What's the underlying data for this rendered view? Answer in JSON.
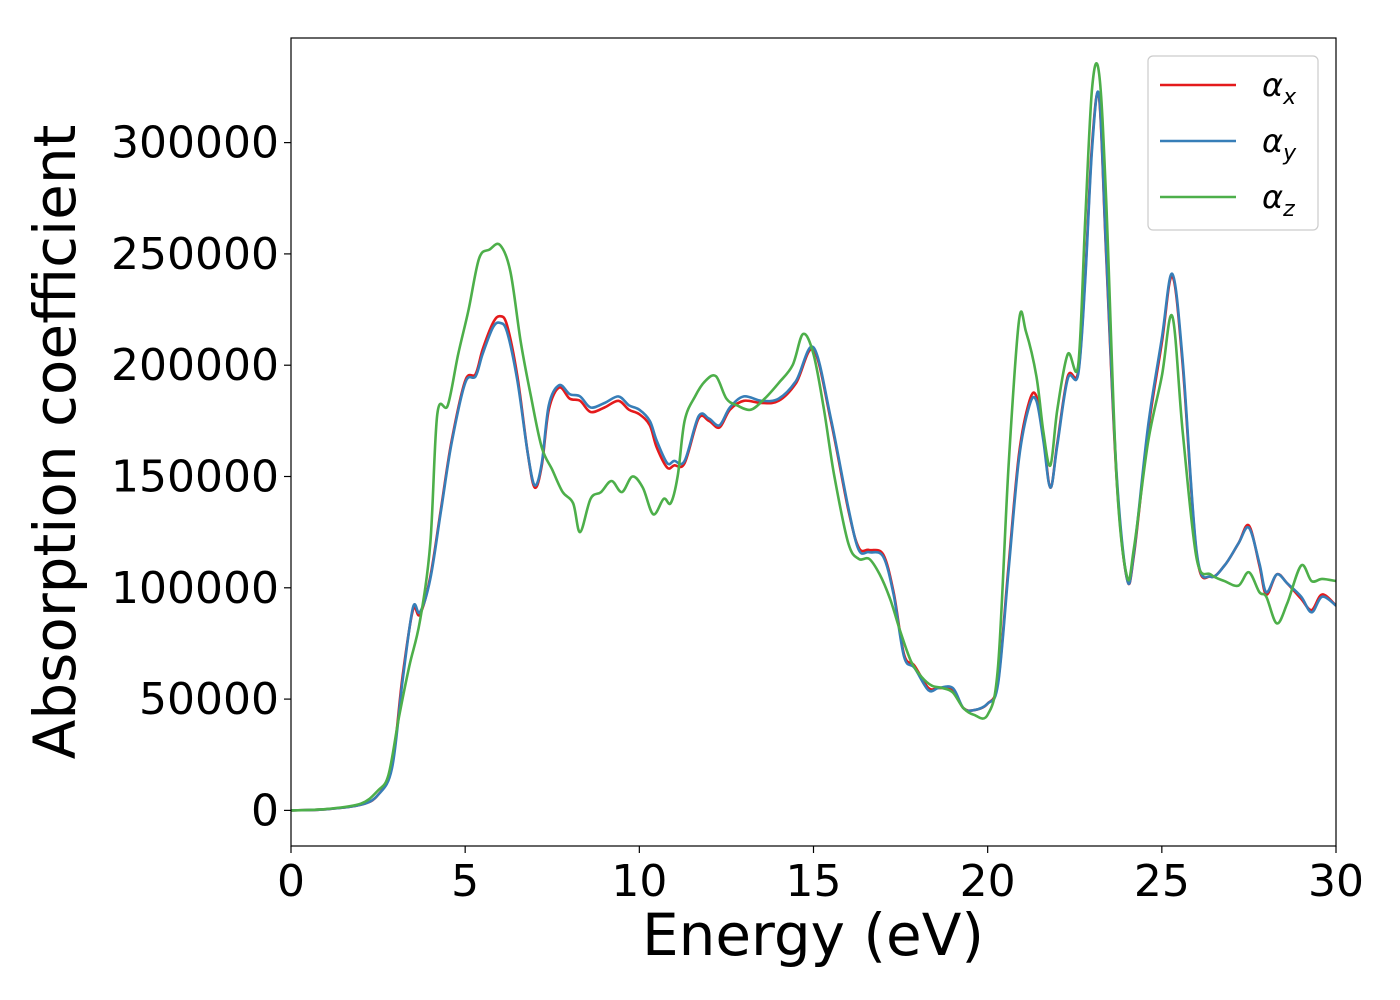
{
  "chart_data": {
    "type": "line",
    "xlabel": "Energy (eV)",
    "ylabel": "Absorption coefficient",
    "xlim": [
      0,
      30
    ],
    "ylim": [
      -16000,
      347000
    ],
    "xticks": [
      0,
      5,
      10,
      15,
      20,
      25,
      30
    ],
    "yticks": [
      0,
      50000,
      100000,
      150000,
      200000,
      250000,
      300000
    ],
    "grid": false,
    "legend_position": "top-right",
    "series": [
      {
        "name": "α_x",
        "symbol": "α",
        "subscript": "x",
        "color": "#e41a1c",
        "x": [
          0,
          1,
          2,
          2.5,
          2.9,
          3.2,
          3.5,
          3.7,
          4.0,
          4.3,
          4.6,
          5.0,
          5.3,
          5.5,
          5.8,
          6.0,
          6.2,
          6.5,
          6.8,
          7.0,
          7.2,
          7.4,
          7.7,
          8.0,
          8.3,
          8.6,
          9.0,
          9.4,
          9.7,
          10.0,
          10.3,
          10.5,
          10.8,
          11.0,
          11.3,
          11.7,
          12.0,
          12.3,
          12.6,
          13.0,
          13.5,
          14.0,
          14.5,
          15.0,
          15.5,
          16.0,
          16.3,
          16.6,
          17.0,
          17.3,
          17.6,
          17.9,
          18.3,
          18.6,
          19.0,
          19.3,
          19.6,
          20.0,
          20.3,
          20.6,
          20.9,
          21.2,
          21.4,
          21.6,
          21.8,
          22.0,
          22.3,
          22.6,
          22.8,
          23.0,
          23.2,
          23.4,
          23.7,
          24.0,
          24.2,
          24.6,
          25.0,
          25.3,
          25.6,
          26.0,
          26.4,
          26.8,
          27.2,
          27.5,
          27.8,
          28.0,
          28.3,
          28.6,
          29.0,
          29.3,
          29.6,
          30.0
        ],
        "y": [
          0,
          500,
          2500,
          7000,
          20000,
          60000,
          90000,
          88000,
          105000,
          135000,
          165000,
          193000,
          196000,
          207000,
          219000,
          222000,
          218000,
          195000,
          160000,
          145000,
          155000,
          180000,
          190000,
          185000,
          184000,
          179000,
          181000,
          184000,
          180000,
          178000,
          173000,
          163000,
          154000,
          155000,
          156000,
          176000,
          175000,
          172000,
          180000,
          184000,
          183000,
          184000,
          192000,
          207000,
          175000,
          135000,
          118000,
          117000,
          115000,
          98000,
          70000,
          65000,
          55000,
          55000,
          54000,
          46000,
          45000,
          48000,
          58000,
          110000,
          160000,
          184000,
          186000,
          168000,
          145000,
          165000,
          195000,
          197000,
          240000,
          300000,
          320000,
          250000,
          150000,
          104000,
          115000,
          170000,
          210000,
          240000,
          200000,
          115000,
          105000,
          110000,
          120000,
          128000,
          110000,
          97000,
          106000,
          102000,
          95000,
          90000,
          97000,
          92000
        ]
      },
      {
        "name": "α_y",
        "symbol": "α",
        "subscript": "y",
        "color": "#377eb8",
        "x": [
          0,
          1,
          2,
          2.5,
          2.9,
          3.2,
          3.5,
          3.7,
          4.0,
          4.3,
          4.6,
          5.0,
          5.3,
          5.5,
          5.8,
          6.0,
          6.2,
          6.5,
          6.8,
          7.0,
          7.2,
          7.4,
          7.7,
          8.0,
          8.3,
          8.6,
          9.0,
          9.4,
          9.7,
          10.0,
          10.3,
          10.5,
          10.8,
          11.0,
          11.3,
          11.7,
          12.0,
          12.3,
          12.6,
          13.0,
          13.5,
          14.0,
          14.5,
          15.0,
          15.5,
          16.0,
          16.3,
          16.6,
          17.0,
          17.3,
          17.6,
          17.9,
          18.3,
          18.6,
          19.0,
          19.3,
          19.6,
          20.0,
          20.3,
          20.6,
          20.9,
          21.2,
          21.4,
          21.6,
          21.8,
          22.0,
          22.3,
          22.6,
          22.8,
          23.0,
          23.2,
          23.4,
          23.7,
          24.0,
          24.2,
          24.6,
          25.0,
          25.3,
          25.6,
          26.0,
          26.4,
          26.8,
          27.2,
          27.5,
          27.8,
          28.0,
          28.3,
          28.6,
          29.0,
          29.3,
          29.6,
          30.0
        ],
        "y": [
          0,
          500,
          2500,
          7000,
          19000,
          58000,
          91000,
          89000,
          104000,
          134000,
          164000,
          192000,
          195000,
          205000,
          217000,
          219000,
          215000,
          193000,
          160000,
          146000,
          156000,
          182000,
          191000,
          187000,
          186000,
          181000,
          183000,
          186000,
          182000,
          180000,
          175000,
          166000,
          156000,
          157000,
          157000,
          177000,
          176000,
          173000,
          181000,
          186000,
          184000,
          185000,
          193000,
          208000,
          176000,
          136000,
          117000,
          116000,
          114000,
          97000,
          69000,
          64000,
          54000,
          55000,
          55000,
          46000,
          45000,
          48000,
          57000,
          108000,
          158000,
          182000,
          184000,
          166000,
          145000,
          164000,
          194000,
          196000,
          238000,
          298000,
          321000,
          252000,
          152000,
          104000,
          116000,
          172000,
          212000,
          241000,
          202000,
          116000,
          105000,
          110000,
          120000,
          127000,
          111000,
          98000,
          106000,
          102000,
          96000,
          89000,
          96000,
          92000
        ]
      },
      {
        "name": "α_z",
        "symbol": "α",
        "subscript": "z",
        "color": "#4daf4a",
        "x": [
          0,
          1,
          2,
          2.5,
          2.8,
          3.1,
          3.4,
          3.7,
          4.0,
          4.2,
          4.5,
          4.8,
          5.1,
          5.4,
          5.7,
          6.0,
          6.3,
          6.6,
          6.9,
          7.2,
          7.5,
          7.8,
          8.1,
          8.3,
          8.6,
          8.9,
          9.2,
          9.5,
          9.8,
          10.1,
          10.4,
          10.7,
          10.9,
          11.1,
          11.3,
          11.6,
          11.9,
          12.2,
          12.5,
          12.8,
          13.2,
          13.6,
          14.0,
          14.4,
          14.7,
          15.0,
          15.3,
          15.6,
          16.0,
          16.3,
          16.6,
          16.9,
          17.2,
          17.5,
          17.8,
          18.1,
          18.4,
          18.7,
          19.0,
          19.3,
          19.6,
          20.0,
          20.3,
          20.6,
          20.9,
          21.1,
          21.4,
          21.6,
          21.8,
          22.0,
          22.3,
          22.6,
          22.8,
          23.0,
          23.2,
          23.4,
          23.7,
          24.0,
          24.2,
          24.6,
          25.0,
          25.3,
          25.6,
          26.0,
          26.4,
          26.8,
          27.2,
          27.5,
          27.8,
          28.0,
          28.3,
          28.6,
          29.0,
          29.3,
          29.6,
          30.0
        ],
        "y": [
          0,
          600,
          3000,
          9000,
          16000,
          42000,
          65000,
          85000,
          120000,
          178000,
          182000,
          205000,
          225000,
          248000,
          252000,
          254000,
          242000,
          210000,
          185000,
          163000,
          153000,
          143000,
          138000,
          125000,
          140000,
          143000,
          148000,
          143000,
          150000,
          145000,
          133000,
          140000,
          138000,
          150000,
          175000,
          186000,
          193000,
          195000,
          185000,
          182000,
          180000,
          185000,
          192000,
          200000,
          214000,
          205000,
          180000,
          150000,
          120000,
          113000,
          113000,
          106000,
          95000,
          80000,
          67000,
          60000,
          56000,
          55000,
          53000,
          46000,
          43000,
          43000,
          65000,
          155000,
          220000,
          215000,
          195000,
          170000,
          155000,
          180000,
          205000,
          200000,
          265000,
          325000,
          331000,
          275000,
          150000,
          105000,
          118000,
          165000,
          195000,
          222000,
          170000,
          113000,
          106000,
          103000,
          101000,
          107000,
          98000,
          96000,
          84000,
          93000,
          110000,
          103000,
          104000,
          103000
        ]
      }
    ]
  }
}
